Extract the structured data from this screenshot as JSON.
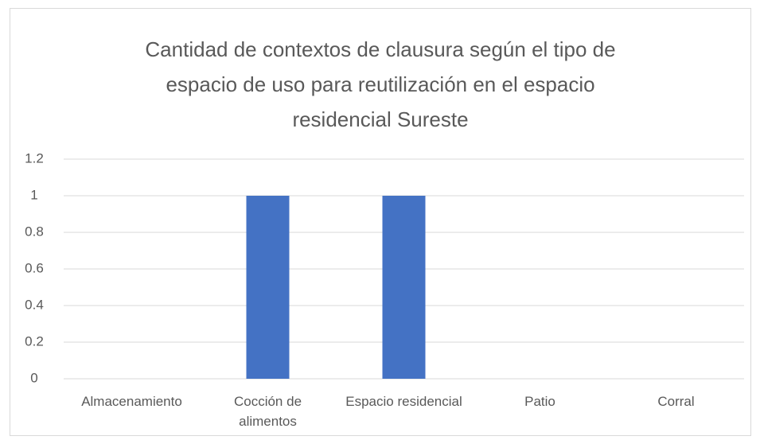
{
  "chart_data": {
    "type": "bar",
    "title": "Cantidad de contextos de clausura según el tipo de espacio de uso para reutilización en el espacio residencial Sureste",
    "categories": [
      "Almacenamiento",
      "Cocción de alimentos",
      "Espacio residencial",
      "Patio",
      "Corral"
    ],
    "values": [
      0,
      1,
      1,
      0,
      0
    ],
    "color": "#4472c4",
    "ylim": [
      0,
      1.2
    ],
    "yticks": [
      0,
      0.2,
      0.4,
      0.6,
      0.8,
      1,
      {
        "value": 1.2,
        "label": "1.2"
      }
    ],
    "grid": true
  }
}
